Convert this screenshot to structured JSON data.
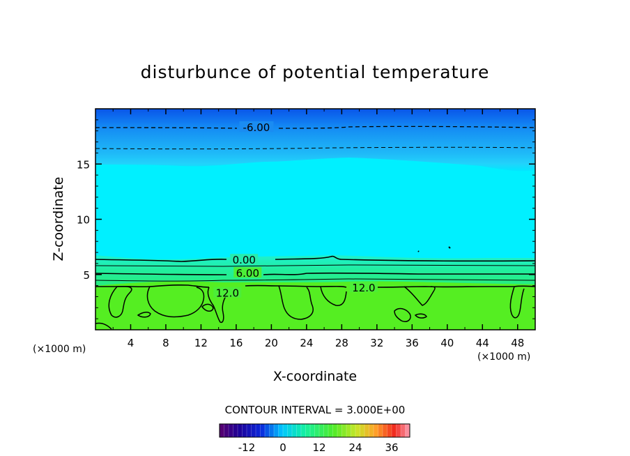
{
  "chart_data": {
    "type": "contour",
    "title": "disturbunce of potential temperature",
    "xlabel": "X-coordinate",
    "ylabel": "Z-coordinate",
    "x_unit": "(×1000 m)",
    "y_unit": "(×1000 m)",
    "xlim": [
      0,
      50
    ],
    "ylim": [
      0,
      20
    ],
    "x_ticks": [
      "4",
      "8",
      "12",
      "16",
      "20",
      "24",
      "28",
      "32",
      "36",
      "40",
      "44",
      "48"
    ],
    "x_tick_values": [
      4,
      8,
      12,
      16,
      20,
      24,
      28,
      32,
      36,
      40,
      44,
      48
    ],
    "y_ticks": [
      "5",
      "10",
      "15"
    ],
    "y_tick_values": [
      5,
      10,
      15
    ],
    "contour_labels": [
      {
        "text": "-6.00",
        "x": 18.3,
        "z": 18.3
      },
      {
        "text": "0.00",
        "x": 16.9,
        "z": 6.3
      },
      {
        "text": "6.00",
        "x": 17.3,
        "z": 5.1
      },
      {
        "text": "12.0",
        "x": 15.0,
        "z": 3.3
      },
      {
        "text": "12.0",
        "x": 30.5,
        "z": 3.8
      }
    ],
    "contour_interval_text": "CONTOUR INTERVAL = 3.000E+00",
    "contour_interval": 3.0,
    "colorbar": {
      "ticks": [
        "-12",
        "0",
        "12",
        "24",
        "36"
      ],
      "tick_values": [
        -12,
        0,
        12,
        24,
        36
      ],
      "range": [
        -21,
        42
      ]
    },
    "field_bands": [
      {
        "z_from": 0,
        "z_to": 3.9,
        "value_range": "12 to 15",
        "color": "#55ee22"
      },
      {
        "z_from": 3.9,
        "z_to": 6.4,
        "value_range": "0 to 12",
        "color": "#2cee8c"
      },
      {
        "z_from": 6.4,
        "z_to": 15.0,
        "value_range": "-3 to 0",
        "color": "#00f0ff"
      },
      {
        "z_from": 15.0,
        "z_to": 20,
        "value_range": "-9 to -3",
        "color": "#0b6ee6"
      }
    ]
  }
}
